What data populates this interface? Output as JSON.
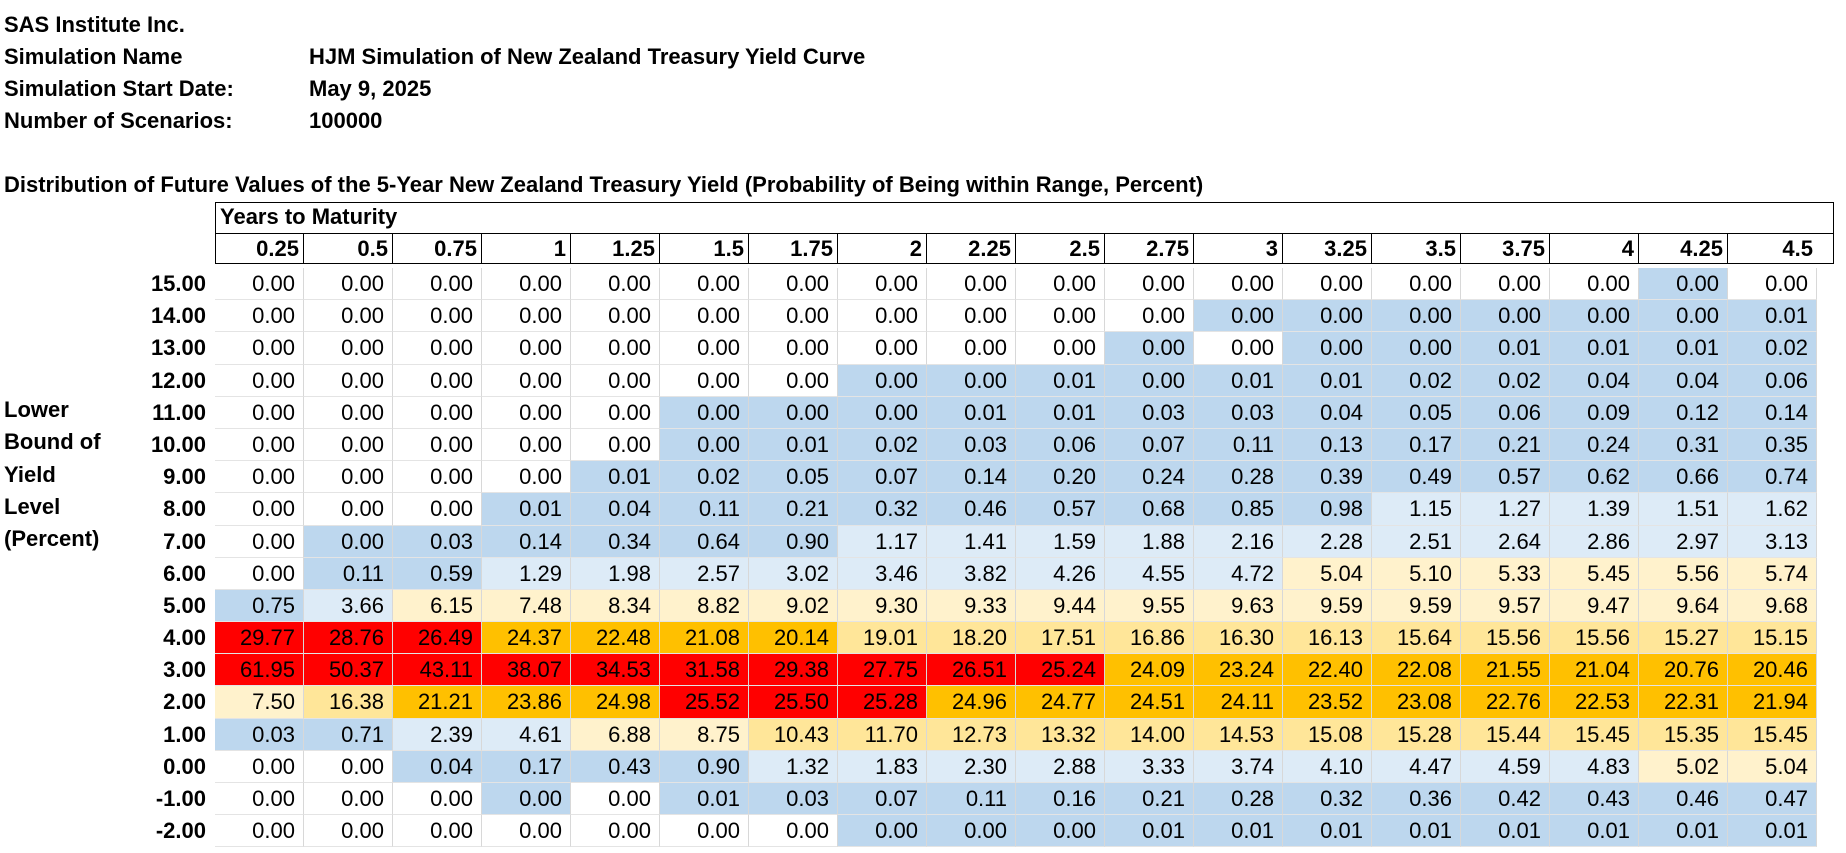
{
  "header": {
    "company": "SAS Institute Inc.",
    "sim_name_label": "Simulation Name",
    "sim_name_value": "HJM Simulation of New Zealand Treasury Yield Curve",
    "start_label": "Simulation Start Date:",
    "start_value": "May 9, 2025",
    "scen_label": "Number of Scenarios:",
    "scen_value": "100000"
  },
  "table": {
    "title": "Distribution of Future Values of the 5-Year New Zealand Treasury Yield (Probability of Being within Range, Percent)",
    "maturity_caption": "Years to Maturity",
    "yield_label_lines": [
      "Lower",
      "Bound of",
      "Yield",
      "Level",
      "(Percent)"
    ],
    "columns": [
      "0.25",
      "0.5",
      "0.75",
      "1",
      "1.25",
      "1.5",
      "1.75",
      "2",
      "2.25",
      "2.5",
      "2.75",
      "3",
      "3.25",
      "3.5",
      "3.75",
      "4",
      "4.25",
      "4.5"
    ],
    "colors": {
      "c0": "#ffffff",
      "c1": "#bdd7ee",
      "c2": "#ddebf7",
      "c3": "#fff2cc",
      "c4": "#ffe699",
      "c5": "#ffc000",
      "c6": "#ff0000"
    },
    "rows": [
      {
        "label": "15.00",
        "values": [
          "0.00",
          "0.00",
          "0.00",
          "0.00",
          "0.00",
          "0.00",
          "0.00",
          "0.00",
          "0.00",
          "0.00",
          "0.00",
          "0.00",
          "0.00",
          "0.00",
          "0.00",
          "0.00",
          "0.00",
          "0.00"
        ],
        "shade": [
          0,
          0,
          0,
          0,
          0,
          0,
          0,
          0,
          0,
          0,
          0,
          0,
          0,
          0,
          0,
          0,
          1,
          0
        ]
      },
      {
        "label": "14.00",
        "values": [
          "0.00",
          "0.00",
          "0.00",
          "0.00",
          "0.00",
          "0.00",
          "0.00",
          "0.00",
          "0.00",
          "0.00",
          "0.00",
          "0.00",
          "0.00",
          "0.00",
          "0.00",
          "0.00",
          "0.00",
          "0.01"
        ],
        "shade": [
          0,
          0,
          0,
          0,
          0,
          0,
          0,
          0,
          0,
          0,
          0,
          1,
          1,
          1,
          1,
          1,
          1,
          1
        ]
      },
      {
        "label": "13.00",
        "values": [
          "0.00",
          "0.00",
          "0.00",
          "0.00",
          "0.00",
          "0.00",
          "0.00",
          "0.00",
          "0.00",
          "0.00",
          "0.00",
          "0.00",
          "0.00",
          "0.00",
          "0.01",
          "0.01",
          "0.01",
          "0.02"
        ],
        "shade": [
          0,
          0,
          0,
          0,
          0,
          0,
          0,
          0,
          0,
          0,
          1,
          0,
          1,
          1,
          1,
          1,
          1,
          1
        ]
      },
      {
        "label": "12.00",
        "values": [
          "0.00",
          "0.00",
          "0.00",
          "0.00",
          "0.00",
          "0.00",
          "0.00",
          "0.00",
          "0.00",
          "0.01",
          "0.00",
          "0.01",
          "0.01",
          "0.02",
          "0.02",
          "0.04",
          "0.04",
          "0.06"
        ],
        "shade": [
          0,
          0,
          0,
          0,
          0,
          0,
          0,
          1,
          1,
          1,
          1,
          1,
          1,
          1,
          1,
          1,
          1,
          1
        ]
      },
      {
        "label": "11.00",
        "values": [
          "0.00",
          "0.00",
          "0.00",
          "0.00",
          "0.00",
          "0.00",
          "0.00",
          "0.00",
          "0.01",
          "0.01",
          "0.03",
          "0.03",
          "0.04",
          "0.05",
          "0.06",
          "0.09",
          "0.12",
          "0.14"
        ],
        "shade": [
          0,
          0,
          0,
          0,
          0,
          1,
          1,
          1,
          1,
          1,
          1,
          1,
          1,
          1,
          1,
          1,
          1,
          1
        ]
      },
      {
        "label": "10.00",
        "values": [
          "0.00",
          "0.00",
          "0.00",
          "0.00",
          "0.00",
          "0.00",
          "0.01",
          "0.02",
          "0.03",
          "0.06",
          "0.07",
          "0.11",
          "0.13",
          "0.17",
          "0.21",
          "0.24",
          "0.31",
          "0.35"
        ],
        "shade": [
          0,
          0,
          0,
          0,
          0,
          1,
          1,
          1,
          1,
          1,
          1,
          1,
          1,
          1,
          1,
          1,
          1,
          1
        ]
      },
      {
        "label": "9.00",
        "values": [
          "0.00",
          "0.00",
          "0.00",
          "0.00",
          "0.01",
          "0.02",
          "0.05",
          "0.07",
          "0.14",
          "0.20",
          "0.24",
          "0.28",
          "0.39",
          "0.49",
          "0.57",
          "0.62",
          "0.66",
          "0.74"
        ],
        "shade": [
          0,
          0,
          0,
          0,
          1,
          1,
          1,
          1,
          1,
          1,
          1,
          1,
          1,
          1,
          1,
          1,
          1,
          1
        ]
      },
      {
        "label": "8.00",
        "values": [
          "0.00",
          "0.00",
          "0.00",
          "0.01",
          "0.04",
          "0.11",
          "0.21",
          "0.32",
          "0.46",
          "0.57",
          "0.68",
          "0.85",
          "0.98",
          "1.15",
          "1.27",
          "1.39",
          "1.51",
          "1.62"
        ],
        "shade": [
          0,
          0,
          0,
          1,
          1,
          1,
          1,
          1,
          1,
          1,
          1,
          1,
          1,
          2,
          2,
          2,
          2,
          2
        ]
      },
      {
        "label": "7.00",
        "values": [
          "0.00",
          "0.00",
          "0.03",
          "0.14",
          "0.34",
          "0.64",
          "0.90",
          "1.17",
          "1.41",
          "1.59",
          "1.88",
          "2.16",
          "2.28",
          "2.51",
          "2.64",
          "2.86",
          "2.97",
          "3.13"
        ],
        "shade": [
          0,
          1,
          1,
          1,
          1,
          1,
          1,
          2,
          2,
          2,
          2,
          2,
          2,
          2,
          2,
          2,
          2,
          2
        ]
      },
      {
        "label": "6.00",
        "values": [
          "0.00",
          "0.11",
          "0.59",
          "1.29",
          "1.98",
          "2.57",
          "3.02",
          "3.46",
          "3.82",
          "4.26",
          "4.55",
          "4.72",
          "5.04",
          "5.10",
          "5.33",
          "5.45",
          "5.56",
          "5.74"
        ],
        "shade": [
          0,
          1,
          1,
          2,
          2,
          2,
          2,
          2,
          2,
          2,
          2,
          2,
          3,
          3,
          3,
          3,
          3,
          3
        ]
      },
      {
        "label": "5.00",
        "values": [
          "0.75",
          "3.66",
          "6.15",
          "7.48",
          "8.34",
          "8.82",
          "9.02",
          "9.30",
          "9.33",
          "9.44",
          "9.55",
          "9.63",
          "9.59",
          "9.59",
          "9.57",
          "9.47",
          "9.64",
          "9.68"
        ],
        "shade": [
          1,
          2,
          3,
          3,
          3,
          3,
          3,
          3,
          3,
          3,
          3,
          3,
          3,
          3,
          3,
          3,
          3,
          3
        ]
      },
      {
        "label": "4.00",
        "values": [
          "29.77",
          "28.76",
          "26.49",
          "24.37",
          "22.48",
          "21.08",
          "20.14",
          "19.01",
          "18.20",
          "17.51",
          "16.86",
          "16.30",
          "16.13",
          "15.64",
          "15.56",
          "15.56",
          "15.27",
          "15.15"
        ],
        "shade": [
          6,
          6,
          6,
          5,
          5,
          5,
          5,
          4,
          4,
          4,
          4,
          4,
          4,
          4,
          4,
          4,
          4,
          4
        ]
      },
      {
        "label": "3.00",
        "values": [
          "61.95",
          "50.37",
          "43.11",
          "38.07",
          "34.53",
          "31.58",
          "29.38",
          "27.75",
          "26.51",
          "25.24",
          "24.09",
          "23.24",
          "22.40",
          "22.08",
          "21.55",
          "21.04",
          "20.76",
          "20.46"
        ],
        "shade": [
          6,
          6,
          6,
          6,
          6,
          6,
          6,
          6,
          6,
          6,
          5,
          5,
          5,
          5,
          5,
          5,
          5,
          5
        ]
      },
      {
        "label": "2.00",
        "values": [
          "7.50",
          "16.38",
          "21.21",
          "23.86",
          "24.98",
          "25.52",
          "25.50",
          "25.28",
          "24.96",
          "24.77",
          "24.51",
          "24.11",
          "23.52",
          "23.08",
          "22.76",
          "22.53",
          "22.31",
          "21.94"
        ],
        "shade": [
          3,
          4,
          5,
          5,
          5,
          6,
          6,
          6,
          5,
          5,
          5,
          5,
          5,
          5,
          5,
          5,
          5,
          5
        ]
      },
      {
        "label": "1.00",
        "values": [
          "0.03",
          "0.71",
          "2.39",
          "4.61",
          "6.88",
          "8.75",
          "10.43",
          "11.70",
          "12.73",
          "13.32",
          "14.00",
          "14.53",
          "15.08",
          "15.28",
          "15.44",
          "15.45",
          "15.35",
          "15.45"
        ],
        "shade": [
          1,
          1,
          2,
          2,
          3,
          3,
          4,
          4,
          4,
          4,
          4,
          4,
          4,
          4,
          4,
          4,
          4,
          4
        ]
      },
      {
        "label": "0.00",
        "values": [
          "0.00",
          "0.00",
          "0.04",
          "0.17",
          "0.43",
          "0.90",
          "1.32",
          "1.83",
          "2.30",
          "2.88",
          "3.33",
          "3.74",
          "4.10",
          "4.47",
          "4.59",
          "4.83",
          "5.02",
          "5.04"
        ],
        "shade": [
          0,
          0,
          1,
          1,
          1,
          1,
          2,
          2,
          2,
          2,
          2,
          2,
          2,
          2,
          2,
          2,
          3,
          3
        ]
      },
      {
        "label": "-1.00",
        "values": [
          "0.00",
          "0.00",
          "0.00",
          "0.00",
          "0.00",
          "0.01",
          "0.03",
          "0.07",
          "0.11",
          "0.16",
          "0.21",
          "0.28",
          "0.32",
          "0.36",
          "0.42",
          "0.43",
          "0.46",
          "0.47"
        ],
        "shade": [
          0,
          0,
          0,
          1,
          0,
          1,
          1,
          1,
          1,
          1,
          1,
          1,
          1,
          1,
          1,
          1,
          1,
          1
        ]
      },
      {
        "label": "-2.00",
        "values": [
          "0.00",
          "0.00",
          "0.00",
          "0.00",
          "0.00",
          "0.00",
          "0.00",
          "0.00",
          "0.00",
          "0.00",
          "0.01",
          "0.01",
          "0.01",
          "0.01",
          "0.01",
          "0.01",
          "0.01",
          "0.01"
        ],
        "shade": [
          0,
          0,
          0,
          0,
          0,
          0,
          0,
          1,
          1,
          1,
          1,
          1,
          1,
          1,
          1,
          1,
          1,
          1
        ]
      }
    ]
  }
}
